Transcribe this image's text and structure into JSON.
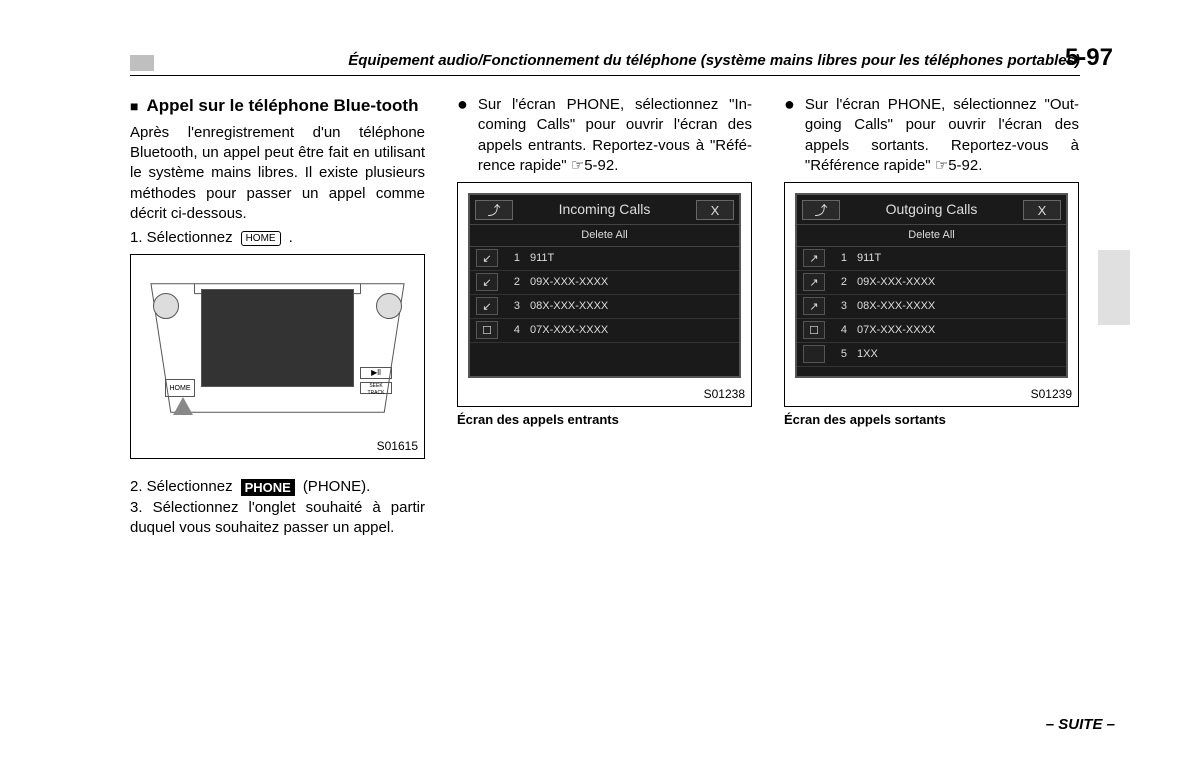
{
  "header": {
    "title": "Équipement audio/Fonctionnement du téléphone (système mains libres pour les téléphones portables)",
    "page_number": "5-97"
  },
  "col1": {
    "section_title": "Appel sur le téléphone Blue-tooth",
    "intro": "Après l'enregistrement d'un téléphone Bluetooth, un appel peut être fait en utilisant le système mains libres. Il existe plusieurs méthodes pour passer un appel comme décrit ci-dessous.",
    "step1_prefix": "1.  Sélectionnez",
    "home_badge": "HOME",
    "step1_suffix": ".",
    "radio_figure": {
      "home_label": "HOME",
      "btn1": "▶ll",
      "btn2": "SEEK TRACK",
      "code": "S01615"
    },
    "step2_prefix": "2.  Sélectionnez",
    "phone_badge": "PHONE",
    "step2_suffix": "(PHONE).",
    "step3": "3.  Sélectionnez l'onglet souhaité à partir duquel vous souhaitez passer un appel."
  },
  "col2": {
    "bullet": "Sur l'écran PHONE, sélectionnez \"In-coming Calls\" pour ouvrir l'écran des appels entrants. Reportez-vous à \"Réfé-rence rapide\" ☞5-92.",
    "screen": {
      "title": "Incoming Calls",
      "back": "⤴",
      "close": "X",
      "delete_all": "Delete All",
      "rows": [
        {
          "icon": "↙",
          "n": "1",
          "label": "911T"
        },
        {
          "icon": "↙",
          "n": "2",
          "label": "09X-XXX-XXXX"
        },
        {
          "icon": "↙",
          "n": "3",
          "label": "08X-XXX-XXXX"
        },
        {
          "icon": "☐",
          "n": "4",
          "label": "07X-XXX-XXXX"
        }
      ],
      "code": "S01238"
    },
    "caption": "Écran des appels entrants"
  },
  "col3": {
    "bullet": "Sur l'écran PHONE, sélectionnez \"Out-going Calls\" pour ouvrir l'écran des appels sortants. Reportez-vous à \"Référence rapide\" ☞5-92.",
    "screen": {
      "title": "Outgoing Calls",
      "back": "⤴",
      "close": "X",
      "delete_all": "Delete All",
      "rows": [
        {
          "icon": "↗",
          "n": "1",
          "label": "911T"
        },
        {
          "icon": "↗",
          "n": "2",
          "label": "09X-XXX-XXXX"
        },
        {
          "icon": "↗",
          "n": "3",
          "label": "08X-XXX-XXXX"
        },
        {
          "icon": "☐",
          "n": "4",
          "label": "07X-XXX-XXXX"
        },
        {
          "icon": "",
          "n": "5",
          "label": "1XX"
        }
      ],
      "code": "S01239"
    },
    "caption": "Écran des appels sortants"
  },
  "footer": {
    "suite": "– SUITE –"
  }
}
